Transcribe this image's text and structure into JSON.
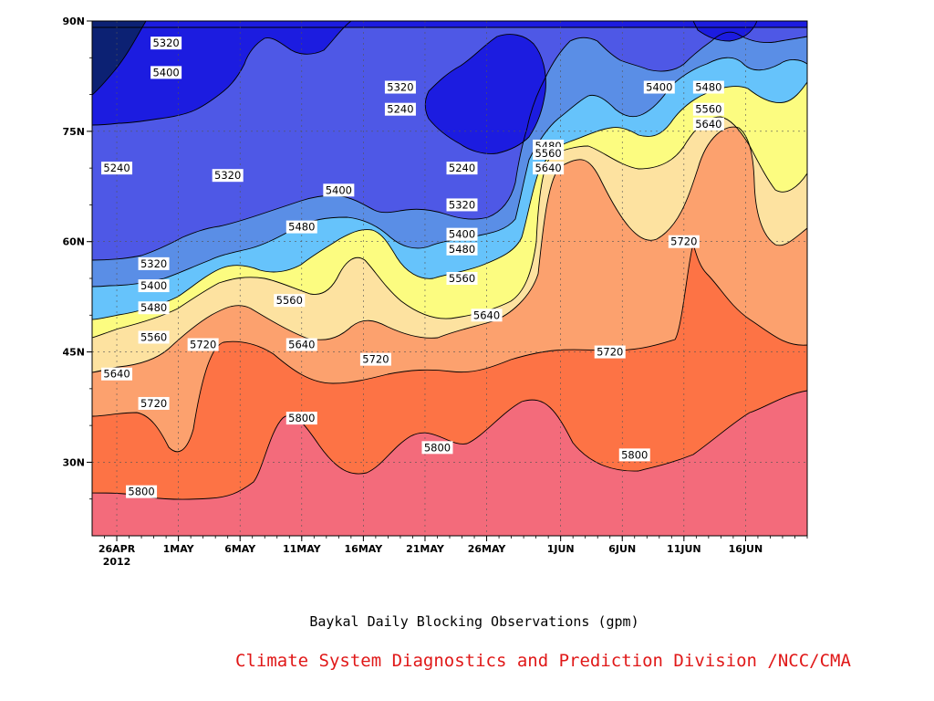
{
  "chart_data": {
    "type": "contour",
    "title": "Baykal Daily Blocking Observations (gpm)",
    "credit": "Climate System Diagnostics and Prediction Division /NCC/CMA",
    "x_ticks": [
      "26APR",
      "1MAY",
      "6MAY",
      "11MAY",
      "16MAY",
      "21MAY",
      "26MAY",
      "1JUN",
      "6JUN",
      "11JUN",
      "16JUN"
    ],
    "x_year": "2012",
    "y_ticks": [
      "30N",
      "45N",
      "60N",
      "75N",
      "90N"
    ],
    "xlim": [
      "2012-04-24",
      "2012-06-21"
    ],
    "ylim": [
      20,
      90
    ],
    "grid": true,
    "levels": [
      5240,
      5320,
      5400,
      5480,
      5560,
      5640,
      5720,
      5800
    ],
    "colors": {
      "below_5240": "#0c2173",
      "5240": "#1c1ce0",
      "5320": "#4e58e6",
      "5400": "#5a8ee6",
      "5480": "#66c3fb",
      "5560": "#fcfc80",
      "5640": "#fde2a0",
      "5720": "#fca16e",
      "5800": "#fd7345",
      "above_5800": "#f36b7b"
    },
    "contour_labels": [
      {
        "value": "5320",
        "date": "2012-04-30",
        "lat": 87
      },
      {
        "value": "5400",
        "date": "2012-04-30",
        "lat": 83
      },
      {
        "value": "5320",
        "date": "2012-05-19",
        "lat": 81
      },
      {
        "value": "5240",
        "date": "2012-05-19",
        "lat": 78
      },
      {
        "value": "5400",
        "date": "2012-06-09",
        "lat": 81
      },
      {
        "value": "5480",
        "date": "2012-06-13",
        "lat": 81
      },
      {
        "value": "5560",
        "date": "2012-06-13",
        "lat": 78
      },
      {
        "value": "5640",
        "date": "2012-06-13",
        "lat": 76
      },
      {
        "value": "5480",
        "date": "2012-05-31",
        "lat": 73
      },
      {
        "value": "5560",
        "date": "2012-05-31",
        "lat": 72
      },
      {
        "value": "5640",
        "date": "2012-05-31",
        "lat": 70
      },
      {
        "value": "5240",
        "date": "2012-04-26",
        "lat": 70
      },
      {
        "value": "5320",
        "date": "2012-05-05",
        "lat": 69
      },
      {
        "value": "5240",
        "date": "2012-05-24",
        "lat": 70
      },
      {
        "value": "5400",
        "date": "2012-05-14",
        "lat": 67
      },
      {
        "value": "5320",
        "date": "2012-05-24",
        "lat": 65
      },
      {
        "value": "5480",
        "date": "2012-05-11",
        "lat": 62
      },
      {
        "value": "5400",
        "date": "2012-05-24",
        "lat": 61
      },
      {
        "value": "5720",
        "date": "2012-06-11",
        "lat": 60
      },
      {
        "value": "5480",
        "date": "2012-05-24",
        "lat": 59
      },
      {
        "value": "5320",
        "date": "2012-04-29",
        "lat": 57
      },
      {
        "value": "5560",
        "date": "2012-05-24",
        "lat": 55
      },
      {
        "value": "5400",
        "date": "2012-04-29",
        "lat": 54
      },
      {
        "value": "5560",
        "date": "2012-05-10",
        "lat": 52
      },
      {
        "value": "5480",
        "date": "2012-04-29",
        "lat": 51
      },
      {
        "value": "5640",
        "date": "2012-05-26",
        "lat": 50
      },
      {
        "value": "5560",
        "date": "2012-04-29",
        "lat": 47
      },
      {
        "value": "5720",
        "date": "2012-05-03",
        "lat": 46
      },
      {
        "value": "5640",
        "date": "2012-05-11",
        "lat": 46
      },
      {
        "value": "5720",
        "date": "2012-06-05",
        "lat": 45
      },
      {
        "value": "5720",
        "date": "2012-05-17",
        "lat": 44
      },
      {
        "value": "5640",
        "date": "2012-04-26",
        "lat": 42
      },
      {
        "value": "5720",
        "date": "2012-04-29",
        "lat": 38
      },
      {
        "value": "5800",
        "date": "2012-05-11",
        "lat": 36
      },
      {
        "value": "5800",
        "date": "2012-05-22",
        "lat": 32
      },
      {
        "value": "5800",
        "date": "2012-06-07",
        "lat": 31
      },
      {
        "value": "5800",
        "date": "2012-04-28",
        "lat": 26
      }
    ]
  }
}
